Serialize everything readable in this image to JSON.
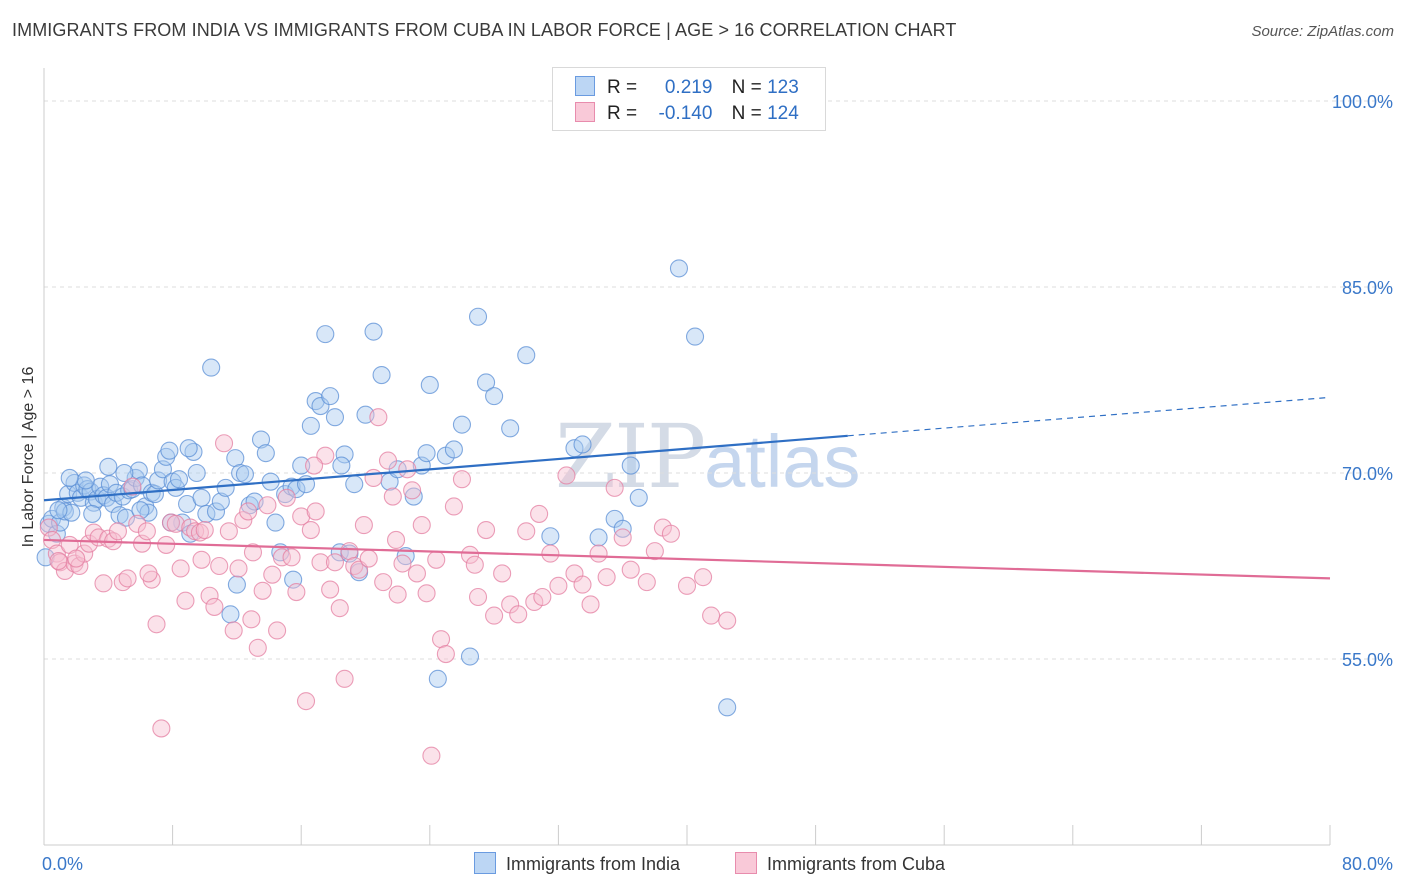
{
  "header": {
    "title": "IMMIGRANTS FROM INDIA VS IMMIGRANTS FROM CUBA IN LABOR FORCE | AGE > 16 CORRELATION CHART",
    "source": "Source: ZipAtlas.com"
  },
  "watermark": {
    "zip": "ZIP",
    "atlas": "atlas"
  },
  "legend": {
    "india": {
      "r_label": "R =",
      "r_value": "0.219",
      "n_label": "N =",
      "n_value": "123"
    },
    "cuba": {
      "r_label": "R =",
      "r_value": "-0.140",
      "n_label": "N =",
      "n_value": "124"
    }
  },
  "colors": {
    "india_fill": "#a9c9ef",
    "india_stroke": "#5b8fd6",
    "india_line": "#2f6fc4",
    "cuba_fill": "#f6bfd0",
    "cuba_stroke": "#e47fa2",
    "cuba_line": "#e06c96",
    "grid": "#dddddd",
    "tick_label": "#3a78c9"
  },
  "chart_data": {
    "type": "scatter",
    "xlabel": "",
    "ylabel": "In Labor Force | Age > 16",
    "xlim": [
      0,
      80
    ],
    "ylim": [
      40,
      102.5
    ],
    "x_tick_labels": [
      "0.0%",
      "80.0%"
    ],
    "y_ticks": [
      55,
      70,
      85,
      100
    ],
    "y_tick_labels": [
      "55.0%",
      "70.0%",
      "85.0%",
      "100.0%"
    ],
    "grid": true,
    "legend_position": "top-center",
    "series": [
      {
        "name": "Immigrants from India",
        "trend": {
          "x0": 0,
          "y0": 67.8,
          "x1": 50,
          "y1": 73.0,
          "dashed_to_x": 80,
          "dashed_to_y": 76.1
        },
        "points": [
          [
            0.3,
            65.9
          ],
          [
            0.5,
            66.3
          ],
          [
            0.8,
            65.1
          ],
          [
            1.0,
            66.0
          ],
          [
            1.2,
            67.2
          ],
          [
            1.3,
            66.9
          ],
          [
            1.5,
            68.3
          ],
          [
            1.7,
            66.8
          ],
          [
            1.9,
            69.2
          ],
          [
            2.1,
            68.4
          ],
          [
            2.3,
            68.0
          ],
          [
            2.5,
            69.0
          ],
          [
            2.7,
            68.7
          ],
          [
            2.9,
            68.5
          ],
          [
            3.1,
            67.6
          ],
          [
            3.3,
            67.9
          ],
          [
            3.5,
            68.9
          ],
          [
            3.7,
            68.2
          ],
          [
            3.9,
            68.0
          ],
          [
            4.1,
            69.1
          ],
          [
            4.3,
            67.5
          ],
          [
            4.5,
            68.4
          ],
          [
            4.7,
            66.6
          ],
          [
            4.9,
            68.1
          ],
          [
            5.1,
            66.4
          ],
          [
            5.3,
            68.6
          ],
          [
            5.5,
            68.7
          ],
          [
            5.7,
            69.6
          ],
          [
            5.9,
            70.2
          ],
          [
            6.1,
            69.0
          ],
          [
            6.3,
            67.3
          ],
          [
            6.5,
            66.8
          ],
          [
            6.7,
            68.4
          ],
          [
            6.9,
            68.3
          ],
          [
            7.1,
            69.4
          ],
          [
            7.4,
            70.3
          ],
          [
            7.6,
            71.3
          ],
          [
            7.8,
            71.8
          ],
          [
            8.0,
            69.3
          ],
          [
            8.2,
            68.8
          ],
          [
            8.4,
            69.5
          ],
          [
            8.6,
            66.0
          ],
          [
            8.9,
            67.5
          ],
          [
            9.1,
            65.1
          ],
          [
            9.3,
            71.7
          ],
          [
            9.5,
            70.0
          ],
          [
            9.8,
            68.0
          ],
          [
            10.1,
            66.7
          ],
          [
            10.4,
            78.5
          ],
          [
            10.7,
            66.9
          ],
          [
            11.0,
            67.7
          ],
          [
            11.3,
            68.8
          ],
          [
            11.6,
            58.6
          ],
          [
            11.9,
            71.2
          ],
          [
            12.2,
            70.0
          ],
          [
            12.5,
            69.9
          ],
          [
            12.8,
            67.4
          ],
          [
            13.1,
            67.7
          ],
          [
            13.5,
            72.7
          ],
          [
            13.8,
            71.6
          ],
          [
            14.1,
            69.3
          ],
          [
            14.4,
            66.0
          ],
          [
            14.7,
            63.6
          ],
          [
            15.0,
            68.3
          ],
          [
            15.4,
            68.9
          ],
          [
            15.7,
            68.7
          ],
          [
            16.0,
            70.6
          ],
          [
            16.3,
            69.1
          ],
          [
            16.6,
            73.8
          ],
          [
            16.9,
            75.8
          ],
          [
            17.2,
            75.4
          ],
          [
            17.5,
            81.2
          ],
          [
            17.8,
            76.2
          ],
          [
            18.1,
            74.5
          ],
          [
            18.4,
            63.6
          ],
          [
            18.7,
            71.5
          ],
          [
            19.0,
            63.5
          ],
          [
            19.3,
            69.1
          ],
          [
            19.6,
            62.0
          ],
          [
            20.0,
            74.7
          ],
          [
            20.5,
            81.4
          ],
          [
            21.0,
            77.9
          ],
          [
            21.5,
            69.3
          ],
          [
            22.0,
            70.3
          ],
          [
            22.5,
            63.3
          ],
          [
            23.0,
            68.1
          ],
          [
            23.5,
            70.6
          ],
          [
            24.0,
            77.1
          ],
          [
            24.5,
            53.4
          ],
          [
            25.0,
            71.4
          ],
          [
            25.5,
            71.9
          ],
          [
            26.0,
            73.9
          ],
          [
            26.5,
            55.2
          ],
          [
            27.0,
            82.6
          ],
          [
            27.5,
            77.3
          ],
          [
            28.0,
            76.2
          ],
          [
            29.0,
            73.6
          ],
          [
            30.0,
            79.5
          ],
          [
            31.5,
            64.9
          ],
          [
            33.0,
            72.0
          ],
          [
            33.5,
            72.3
          ],
          [
            34.5,
            64.8
          ],
          [
            35.5,
            66.3
          ],
          [
            36.0,
            65.5
          ],
          [
            36.5,
            70.6
          ],
          [
            37.0,
            68.0
          ],
          [
            39.5,
            86.5
          ],
          [
            40.5,
            81.0
          ],
          [
            42.5,
            51.1
          ],
          [
            5.0,
            70.0
          ],
          [
            3.0,
            66.7
          ],
          [
            7.9,
            66.0
          ],
          [
            2.6,
            69.4
          ],
          [
            0.9,
            67.0
          ],
          [
            4.0,
            70.5
          ],
          [
            6.0,
            67.0
          ],
          [
            9.0,
            72.0
          ],
          [
            12.0,
            61.0
          ],
          [
            15.5,
            61.4
          ],
          [
            18.5,
            70.6
          ],
          [
            1.6,
            69.6
          ],
          [
            23.8,
            71.6
          ],
          [
            0.1,
            63.2
          ]
        ]
      },
      {
        "name": "Immigrants from Cuba",
        "trend": {
          "x0": 0,
          "y0": 64.6,
          "x1": 80,
          "y1": 61.5
        },
        "points": [
          [
            0.3,
            65.6
          ],
          [
            0.5,
            64.6
          ],
          [
            0.8,
            63.5
          ],
          [
            1.0,
            62.8
          ],
          [
            1.3,
            62.1
          ],
          [
            1.6,
            64.2
          ],
          [
            1.9,
            62.7
          ],
          [
            2.2,
            62.5
          ],
          [
            2.5,
            63.5
          ],
          [
            2.8,
            64.3
          ],
          [
            3.1,
            65.2
          ],
          [
            3.4,
            64.8
          ],
          [
            3.7,
            61.1
          ],
          [
            4.0,
            64.7
          ],
          [
            4.3,
            64.5
          ],
          [
            4.6,
            65.3
          ],
          [
            4.9,
            61.2
          ],
          [
            5.2,
            61.5
          ],
          [
            5.5,
            68.9
          ],
          [
            5.8,
            65.9
          ],
          [
            6.1,
            64.3
          ],
          [
            6.4,
            65.3
          ],
          [
            6.7,
            61.4
          ],
          [
            7.0,
            57.8
          ],
          [
            7.3,
            49.4
          ],
          [
            7.6,
            64.2
          ],
          [
            7.9,
            66.0
          ],
          [
            8.2,
            65.9
          ],
          [
            8.5,
            62.3
          ],
          [
            8.8,
            59.7
          ],
          [
            9.1,
            65.6
          ],
          [
            9.4,
            65.3
          ],
          [
            9.7,
            65.2
          ],
          [
            10.0,
            65.4
          ],
          [
            10.3,
            60.1
          ],
          [
            10.6,
            59.2
          ],
          [
            10.9,
            62.5
          ],
          [
            11.2,
            72.4
          ],
          [
            11.5,
            65.3
          ],
          [
            11.8,
            57.3
          ],
          [
            12.1,
            62.3
          ],
          [
            12.4,
            66.2
          ],
          [
            12.7,
            66.9
          ],
          [
            13.0,
            63.6
          ],
          [
            13.3,
            55.9
          ],
          [
            13.6,
            60.5
          ],
          [
            13.9,
            67.4
          ],
          [
            14.2,
            61.8
          ],
          [
            14.5,
            57.3
          ],
          [
            14.8,
            63.2
          ],
          [
            15.1,
            68.0
          ],
          [
            15.4,
            63.2
          ],
          [
            15.7,
            60.4
          ],
          [
            16.0,
            66.5
          ],
          [
            16.3,
            51.6
          ],
          [
            16.6,
            65.4
          ],
          [
            16.9,
            66.9
          ],
          [
            17.2,
            62.8
          ],
          [
            17.5,
            71.4
          ],
          [
            17.8,
            60.6
          ],
          [
            18.1,
            62.8
          ],
          [
            18.4,
            59.1
          ],
          [
            18.7,
            53.4
          ],
          [
            19.0,
            63.7
          ],
          [
            19.3,
            62.5
          ],
          [
            19.6,
            62.2
          ],
          [
            19.9,
            65.8
          ],
          [
            20.2,
            63.1
          ],
          [
            20.5,
            69.6
          ],
          [
            20.8,
            74.5
          ],
          [
            21.1,
            61.2
          ],
          [
            21.4,
            71.0
          ],
          [
            21.7,
            68.1
          ],
          [
            22.0,
            60.2
          ],
          [
            22.3,
            62.7
          ],
          [
            22.6,
            70.3
          ],
          [
            22.9,
            68.6
          ],
          [
            23.2,
            61.9
          ],
          [
            23.5,
            65.8
          ],
          [
            23.8,
            60.3
          ],
          [
            24.1,
            47.2
          ],
          [
            24.4,
            63.0
          ],
          [
            24.7,
            56.6
          ],
          [
            25.0,
            55.4
          ],
          [
            25.5,
            67.3
          ],
          [
            26.0,
            69.5
          ],
          [
            26.5,
            63.4
          ],
          [
            27.0,
            60.0
          ],
          [
            27.5,
            65.4
          ],
          [
            28.0,
            58.5
          ],
          [
            28.5,
            61.9
          ],
          [
            29.0,
            59.4
          ],
          [
            29.5,
            58.6
          ],
          [
            30.0,
            65.3
          ],
          [
            30.5,
            59.6
          ],
          [
            31.0,
            60.0
          ],
          [
            31.5,
            63.5
          ],
          [
            32.0,
            60.9
          ],
          [
            32.5,
            69.8
          ],
          [
            33.0,
            61.9
          ],
          [
            33.5,
            61.0
          ],
          [
            34.0,
            59.4
          ],
          [
            34.5,
            63.5
          ],
          [
            35.0,
            61.6
          ],
          [
            35.5,
            68.8
          ],
          [
            36.0,
            64.8
          ],
          [
            36.5,
            62.2
          ],
          [
            37.5,
            61.2
          ],
          [
            38.0,
            63.7
          ],
          [
            38.5,
            65.6
          ],
          [
            39.0,
            65.1
          ],
          [
            40.0,
            60.9
          ],
          [
            41.0,
            61.6
          ],
          [
            41.5,
            58.5
          ],
          [
            42.5,
            58.1
          ],
          [
            0.9,
            62.9
          ],
          [
            2.0,
            63.1
          ],
          [
            6.5,
            61.9
          ],
          [
            9.8,
            63.0
          ],
          [
            12.9,
            58.2
          ],
          [
            16.8,
            70.6
          ],
          [
            21.9,
            64.6
          ],
          [
            26.8,
            62.6
          ],
          [
            30.8,
            66.7
          ]
        ]
      }
    ]
  },
  "bottom_legend": {
    "india": "Immigrants from India",
    "cuba": "Immigrants from Cuba"
  }
}
